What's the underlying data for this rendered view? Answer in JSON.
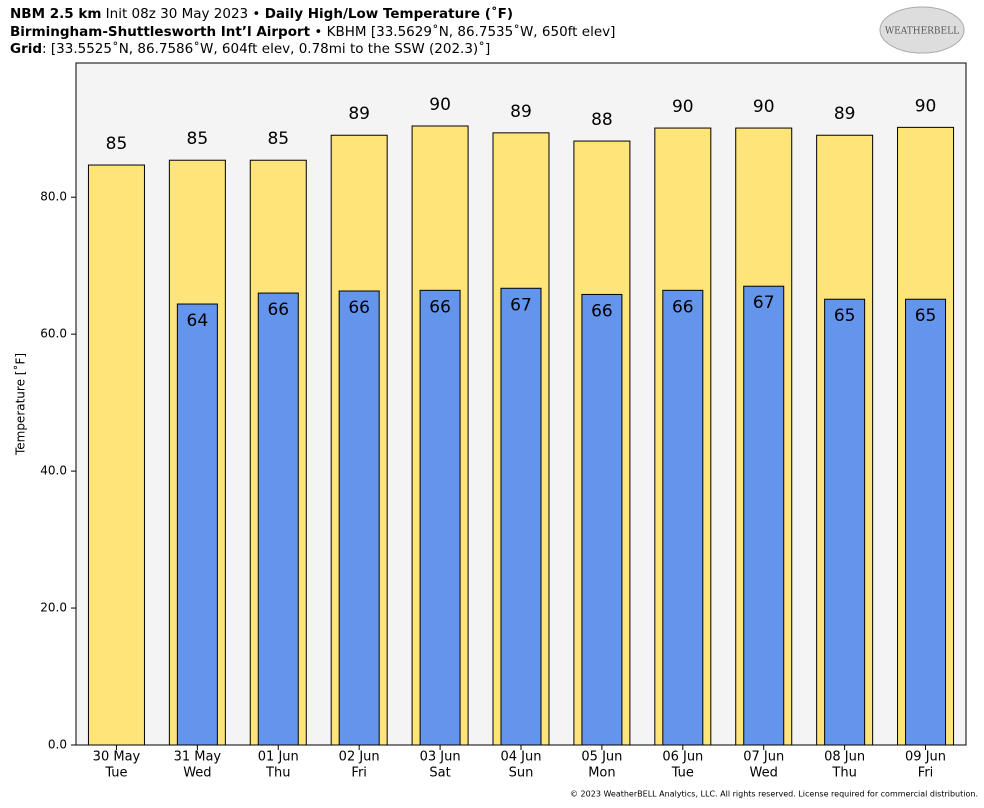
{
  "header": {
    "line1": [
      "NBM 2.5 km",
      " Init 08z 30 May 2023 • ",
      "Daily High/Low Temperature (˚F)"
    ],
    "line2": [
      "Birmingham-Shuttlesworth Int’l Airport",
      " • KBHM [33.5629˚N, 86.7535˚W, 650ft elev]"
    ],
    "line3": [
      "Grid",
      ": [33.5525˚N, 86.7586˚W, 604ft elev, 0.78mi to the SSW (202.3)˚]"
    ],
    "logo": "WEATHERBELL"
  },
  "footer": "© 2023 WeatherBELL Analytics, LLC. All rights reserved. License required for commercial distribution.",
  "chart_data": {
    "type": "bar",
    "ylabel": "Temperature [˚F]",
    "categories": [
      "30 May",
      "31 May",
      "01 Jun",
      "02 Jun",
      "03 Jun",
      "04 Jun",
      "05 Jun",
      "06 Jun",
      "07 Jun",
      "08 Jun",
      "09 Jun"
    ],
    "days": [
      "Tue",
      "Wed",
      "Thu",
      "Fri",
      "Sat",
      "Sun",
      "Mon",
      "Tue",
      "Wed",
      "Thu",
      "Fri"
    ],
    "series": [
      {
        "color": "#ffe47a",
        "values": [
          84.7,
          85.4,
          85.4,
          89.05,
          90.4,
          89.4,
          88.2,
          90.1,
          90.1,
          89.05,
          90.2
        ],
        "value_labels": [
          "85",
          "85",
          "85",
          "89",
          "90",
          "89",
          "88",
          "90",
          "90",
          "89",
          "90"
        ]
      },
      {
        "color": "#6495ed",
        "values": [
          null,
          64.4,
          66.0,
          66.3,
          66.4,
          66.7,
          65.8,
          66.4,
          67.0,
          65.1,
          65.1
        ],
        "value_labels": [
          null,
          "64",
          "66",
          "66",
          "66",
          "67",
          "66",
          "66",
          "67",
          "65",
          "65"
        ]
      }
    ],
    "ylim": [
      0,
      99.6
    ],
    "yticks": [
      {
        "value": 0,
        "label": "0.0"
      },
      {
        "value": 20,
        "label": "20.0"
      },
      {
        "value": 40,
        "label": "40.0"
      },
      {
        "value": 60,
        "label": "60.0"
      },
      {
        "value": 80,
        "label": "80.0"
      }
    ]
  }
}
